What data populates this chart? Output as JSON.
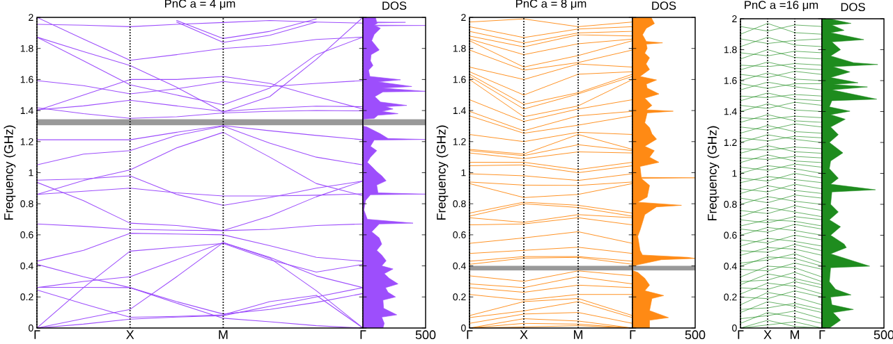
{
  "chart_data": [
    {
      "type": "line",
      "title": "PnC a = 4 μm",
      "ylabel": "Frequency (GHz)",
      "color": "#9d4efc",
      "categories": [
        "Γ",
        null,
        "X",
        null,
        "M",
        null,
        null,
        "Γ"
      ],
      "grid": "x",
      "ylim": [
        0,
        2
      ],
      "yticks": [
        0,
        0.2,
        0.4,
        0.6,
        0.8,
        1,
        1.2,
        1.4,
        1.6,
        1.8,
        2
      ],
      "bands": [
        {
          "axis": "y",
          "from": 1.305,
          "to": 1.345,
          "color": "#999999"
        }
      ],
      "series": [
        {
          "values": [
            0,
            0.025,
            0.057,
            0.07,
            0.08,
            0.14,
            0.2,
            0.26
          ]
        },
        {
          "values": [
            0,
            0.06,
            0.12,
            0.33,
            0.55,
            0.45,
            0.24,
            0
          ]
        },
        {
          "values": [
            0,
            0.26,
            0.495,
            0.52,
            0.545,
            0.44,
            0.36,
            0.41
          ]
        },
        {
          "values": [
            0.245,
            0.155,
            0.069,
            0.075,
            0.085,
            0.17,
            0.21,
            0
          ]
        },
        {
          "values": [
            0.262,
            0.262,
            0.26,
            0.16,
            0.063,
            0.04,
            0.015,
            0
          ]
        },
        {
          "values": [
            0.41,
            0.33,
            0.26,
            0.17,
            0.09,
            0.12,
            0.165,
            0.222
          ]
        },
        {
          "values": [
            0.26,
            0.3,
            0.33,
            0.44,
            0.55,
            0.455,
            0.335,
            0.26
          ]
        },
        {
          "values": [
            0.43,
            0.5,
            0.61,
            0.605,
            0.6,
            0.53,
            0.455,
            0.43
          ]
        },
        {
          "values": [
            0.67,
            0.655,
            0.635,
            0.63,
            0.627,
            0.635,
            0.66,
            0.67
          ]
        },
        {
          "values": [
            0.938,
            0.82,
            0.675,
            0.66,
            0.627,
            0.72,
            0.845,
            0.946
          ]
        },
        {
          "values": [
            0.86,
            0.88,
            0.9,
            0.87,
            0.85,
            0.85,
            0.855,
            0.864
          ]
        },
        {
          "values": [
            0.952,
            0.96,
            0.98,
            0.86,
            0.79,
            0.84,
            0.9,
            0.946
          ]
        },
        {
          "values": [
            0.86,
            0.95,
            1.018,
            1.16,
            1.26,
            1.1,
            0.93,
            0.852
          ]
        },
        {
          "values": [
            1.05,
            1.12,
            1.142,
            1.24,
            1.3,
            1.19,
            1.1,
            1.05
          ]
        },
        {
          "values": [
            1.212,
            1.212,
            1.212,
            1.26,
            1.303,
            1.27,
            1.24,
            1.212
          ]
        },
        {
          "values": [
            1.418,
            1.38,
            1.35,
            1.36,
            1.385,
            1.395,
            1.4,
            1.398
          ]
        },
        {
          "values": [
            1.405,
            1.43,
            1.466,
            1.43,
            1.395,
            1.415,
            1.428,
            1.425
          ]
        },
        {
          "values": [
            1.4,
            1.5,
            1.6,
            1.6,
            1.62,
            1.575,
            1.49,
            1.41
          ]
        },
        {
          "values": [
            1.593,
            1.56,
            1.508,
            1.54,
            1.587,
            1.555,
            1.575,
            1.593
          ]
        },
        {
          "values": [
            1.873,
            1.72,
            1.566,
            1.5,
            1.437,
            1.545,
            1.76,
            1.873
          ]
        },
        {
          "values": [
            1.873,
            1.78,
            1.69,
            1.55,
            1.39,
            1.49,
            1.73,
            2
          ]
        },
        {
          "values": [
            2,
            1.86,
            1.724,
            1.76,
            1.8,
            1.82,
            1.858,
            1.873
          ]
        },
        {
          "values": [
            1.955,
            1.95,
            1.94,
            1.955,
            1.967,
            1.98,
            1.97,
            1.963
          ]
        },
        {
          "values": [
            null,
            null,
            null,
            1.98,
            1.864,
            1.91,
            1.99,
            null
          ]
        },
        {
          "values": [
            null,
            null,
            null,
            1.97,
            1.839,
            1.885,
            1.97,
            null
          ]
        }
      ]
    },
    {
      "type": "area",
      "orientation": "horizontal",
      "title": "DOS",
      "color": "#9d4efc",
      "xlim": [
        0,
        500
      ],
      "xticks": [
        500
      ],
      "ylim": [
        0,
        2
      ],
      "yticks": [
        0,
        0.2,
        0.4,
        0.6,
        0.8,
        1,
        1.2,
        1.4,
        1.6,
        1.8,
        2
      ],
      "tick_labels": "x",
      "bands": [
        {
          "axis": "y",
          "from": 1.305,
          "to": 1.345,
          "color": "#999999"
        }
      ],
      "x": [
        2.0,
        1.97,
        1.968,
        1.965,
        1.95,
        1.948,
        1.945,
        1.93,
        1.89,
        1.85,
        1.79,
        1.76,
        1.72,
        1.69,
        1.66,
        1.62,
        1.598,
        1.585,
        1.555,
        1.545,
        1.524,
        1.52,
        1.49,
        1.455,
        1.433,
        1.425,
        1.41,
        1.395,
        1.38,
        1.37,
        1.35,
        1.345,
        1.3,
        1.295,
        1.25,
        1.22,
        1.214,
        1.21,
        1.17,
        1.142,
        1.1,
        1.067,
        1.04,
        1.007,
        0.98,
        0.948,
        0.92,
        0.87,
        0.862,
        0.858,
        0.82,
        0.76,
        0.7,
        0.675,
        0.67,
        0.62,
        0.58,
        0.54,
        0.5,
        0.47,
        0.433,
        0.4,
        0.38,
        0.35,
        0.32,
        0.284,
        0.26,
        0.23,
        0.2,
        0.18,
        0.127,
        0.085,
        0.07,
        0.03,
        0
      ],
      "values": [
        100,
        110,
        340,
        120,
        90,
        500,
        100,
        140,
        90,
        70,
        130,
        65,
        60,
        80,
        45,
        55,
        300,
        120,
        390,
        150,
        500,
        160,
        95,
        140,
        350,
        180,
        240,
        150,
        280,
        120,
        90,
        0,
        0,
        30,
        140,
        200,
        500,
        90,
        60,
        110,
        60,
        35,
        70,
        110,
        150,
        185,
        110,
        120,
        500,
        60,
        20,
        8,
        35,
        400,
        130,
        70,
        130,
        150,
        110,
        150,
        185,
        150,
        240,
        170,
        210,
        280,
        180,
        200,
        260,
        160,
        165,
        270,
        150,
        170,
        160
      ]
    },
    {
      "type": "line",
      "title": "PnC a = 8 μm",
      "ylabel": "Frequency (GHz)",
      "color": "#ff8a14",
      "categories": [
        "Γ",
        "X",
        "M",
        "Γ"
      ],
      "grid": "x",
      "ylim": [
        0,
        2
      ],
      "yticks": [
        0,
        0.2,
        0.4,
        0.6,
        0.8,
        1,
        1.2,
        1.4,
        1.6,
        1.8,
        2
      ],
      "bands": [
        {
          "axis": "y",
          "from": 0.37,
          "to": 0.4,
          "color": "#999999"
        }
      ],
      "series": [
        {
          "values": [
            0,
            0.007,
            0.015,
            0
          ]
        },
        {
          "values": [
            0,
            0.03,
            0.025,
            0
          ]
        },
        {
          "values": [
            0,
            0.06,
            0.045,
            0
          ]
        },
        {
          "values": [
            0.03,
            0.09,
            0.1,
            0.03
          ]
        },
        {
          "values": [
            0.067,
            0.11,
            0.17,
            0.067
          ]
        },
        {
          "values": [
            0.08,
            0.17,
            0.19,
            0.08
          ]
        },
        {
          "values": [
            0.216,
            0.18,
            0.216,
            0.216
          ]
        },
        {
          "values": [
            0.26,
            0.23,
            0.276,
            0.26
          ]
        },
        {
          "values": [
            0.284,
            0.26,
            0.33,
            0.284
          ]
        },
        {
          "values": [
            0.336,
            0.3,
            0.368,
            0.336
          ]
        },
        {
          "values": [
            0.41,
            0.45,
            0.455,
            0.41
          ]
        },
        {
          "values": [
            0.43,
            0.46,
            0.46,
            0.43
          ]
        },
        {
          "values": [
            0.48,
            0.5,
            0.52,
            0.48
          ]
        },
        {
          "values": [
            0.545,
            0.58,
            0.62,
            0.545
          ]
        },
        {
          "values": [
            0.664,
            0.67,
            0.71,
            0.664
          ]
        },
        {
          "values": [
            0.71,
            0.68,
            0.73,
            0.71
          ]
        },
        {
          "values": [
            0.72,
            0.8,
            0.776,
            0.72
          ]
        },
        {
          "values": [
            0.74,
            0.81,
            0.79,
            0.74
          ]
        },
        {
          "values": [
            0.93,
            0.84,
            0.86,
            0.93
          ]
        },
        {
          "values": [
            0.94,
            0.92,
            0.918,
            0.94
          ]
        },
        {
          "values": [
            0.993,
            0.98,
            0.95,
            0.993
          ]
        },
        {
          "values": [
            1.045,
            1.05,
            1.0,
            1.045
          ]
        },
        {
          "values": [
            1.067,
            1.067,
            1.02,
            1.067
          ]
        },
        {
          "values": [
            1.127,
            1.09,
            1.134,
            1.127
          ]
        },
        {
          "values": [
            1.142,
            1.11,
            1.18,
            1.142
          ]
        },
        {
          "values": [
            1.15,
            1.12,
            1.246,
            1.15
          ]
        },
        {
          "values": [
            1.246,
            1.2,
            1.26,
            1.246
          ]
        },
        {
          "values": [
            1.366,
            1.254,
            1.306,
            1.366
          ]
        },
        {
          "values": [
            1.395,
            1.27,
            1.366,
            1.395
          ]
        },
        {
          "values": [
            1.47,
            1.33,
            1.41,
            1.47
          ]
        },
        {
          "values": [
            1.6,
            1.36,
            1.43,
            1.6
          ]
        },
        {
          "values": [
            1.62,
            1.41,
            1.507,
            1.62
          ]
        },
        {
          "values": [
            1.634,
            1.44,
            1.515,
            1.634
          ]
        },
        {
          "values": [
            1.65,
            1.5,
            1.634,
            1.65
          ]
        },
        {
          "values": [
            1.68,
            1.6,
            1.7,
            1.68
          ]
        },
        {
          "values": [
            1.79,
            1.66,
            1.709,
            1.79
          ]
        },
        {
          "values": [
            1.85,
            1.68,
            1.754,
            1.85
          ]
        },
        {
          "values": [
            1.86,
            1.76,
            1.83,
            1.86
          ]
        },
        {
          "values": [
            1.88,
            1.81,
            1.888,
            1.88
          ]
        },
        {
          "values": [
            1.91,
            1.835,
            1.9,
            1.91
          ]
        },
        {
          "values": [
            1.94,
            1.87,
            1.925,
            1.94
          ]
        },
        {
          "values": [
            1.97,
            1.99,
            1.94,
            1.97
          ]
        }
      ]
    },
    {
      "type": "area",
      "orientation": "horizontal",
      "title": "DOS",
      "color": "#ff8a14",
      "xlim": [
        0,
        500
      ],
      "xticks": [
        500
      ],
      "ylim": [
        0,
        2
      ],
      "yticks": [
        0,
        0.2,
        0.4,
        0.6,
        0.8,
        1,
        1.2,
        1.4,
        1.6,
        1.8,
        2
      ],
      "tick_labels": "x",
      "bands": [
        {
          "axis": "y",
          "from": 0.37,
          "to": 0.4,
          "color": "#999999"
        }
      ],
      "x": [
        2.0,
        1.99,
        1.96,
        1.93,
        1.888,
        1.845,
        1.836,
        1.828,
        1.8,
        1.77,
        1.74,
        1.7,
        1.664,
        1.62,
        1.597,
        1.57,
        1.545,
        1.507,
        1.48,
        1.433,
        1.405,
        1.396,
        1.385,
        1.321,
        1.29,
        1.25,
        1.216,
        1.17,
        1.142,
        1.1,
        1.067,
        1.04,
        0.97,
        0.967,
        0.963,
        0.918,
        0.843,
        0.81,
        0.79,
        0.78,
        0.73,
        0.679,
        0.63,
        0.59,
        0.545,
        0.5,
        0.47,
        0.455,
        0.448,
        0.44,
        0.41,
        0.4,
        0.37,
        0.358,
        0.32,
        0.276,
        0.24,
        0.209,
        0.19,
        0.112,
        0.067,
        0.05,
        0
      ],
      "values": [
        150,
        155,
        175,
        110,
        80,
        110,
        240,
        110,
        117,
        98,
        136,
        108,
        136,
        60,
        192,
        110,
        117,
        211,
        98,
        155,
        110,
        325,
        117,
        98,
        136,
        155,
        192,
        98,
        174,
        136,
        211,
        60,
        70,
        500,
        70,
        136,
        117,
        42,
        391,
        192,
        98,
        79,
        60,
        42,
        51,
        60,
        79,
        438,
        500,
        230,
        60,
        0,
        0,
        42,
        98,
        136,
        98,
        249,
        155,
        136,
        287,
        136,
        136
      ]
    },
    {
      "type": "line",
      "title": "PnC a =16 μm",
      "ylabel": "Frequency (GHz)",
      "color": "#1e8c1e",
      "categories": [
        "Γ",
        "X",
        "M",
        "Γ"
      ],
      "grid": "x",
      "ylim": [
        0,
        2
      ],
      "yticks": [
        0,
        0.2,
        0.4,
        0.6,
        0.8,
        1,
        1.2,
        1.4,
        1.6,
        1.8,
        2
      ],
      "series": [
        {
          "values": [
            0,
            0.05,
            0.01,
            0
          ]
        },
        {
          "values": [
            0,
            0.02,
            0.04,
            0
          ]
        },
        {
          "values": [
            0.03,
            0.1,
            0.07,
            0.03
          ]
        },
        {
          "values": [
            0.06,
            0.08,
            0.11,
            0.06
          ]
        },
        {
          "values": [
            0.1,
            0.17,
            0.14,
            0.1
          ]
        },
        {
          "values": [
            0.12,
            0.13,
            0.16,
            0.12
          ]
        },
        {
          "values": [
            0.15,
            0.23,
            0.2,
            0.15
          ]
        },
        {
          "values": [
            0.2,
            0.19,
            0.24,
            0.2
          ]
        },
        {
          "values": [
            0.22,
            0.29,
            0.27,
            0.22
          ]
        },
        {
          "values": [
            0.26,
            0.25,
            0.3,
            0.26
          ]
        },
        {
          "values": [
            0.28,
            0.35,
            0.32,
            0.28
          ]
        },
        {
          "values": [
            0.3,
            0.31,
            0.36,
            0.3
          ]
        },
        {
          "values": [
            0.33,
            0.4,
            0.39,
            0.33
          ]
        },
        {
          "values": [
            0.38,
            0.37,
            0.42,
            0.38
          ]
        },
        {
          "values": [
            0.4,
            0.46,
            0.45,
            0.4
          ]
        },
        {
          "values": [
            0.42,
            0.44,
            0.48,
            0.42
          ]
        },
        {
          "values": [
            0.47,
            0.52,
            0.51,
            0.47
          ]
        },
        {
          "values": [
            0.5,
            0.49,
            0.54,
            0.5
          ]
        },
        {
          "values": [
            0.53,
            0.58,
            0.56,
            0.53
          ]
        },
        {
          "values": [
            0.57,
            0.55,
            0.6,
            0.57
          ]
        },
        {
          "values": [
            0.6,
            0.65,
            0.63,
            0.6
          ]
        },
        {
          "values": [
            0.64,
            0.62,
            0.67,
            0.64
          ]
        },
        {
          "values": [
            0.66,
            0.7,
            0.69,
            0.66
          ]
        },
        {
          "values": [
            0.7,
            0.68,
            0.72,
            0.7
          ]
        },
        {
          "values": [
            0.72,
            0.78,
            0.75,
            0.72
          ]
        },
        {
          "values": [
            0.76,
            0.74,
            0.79,
            0.76
          ]
        },
        {
          "values": [
            0.8,
            0.85,
            0.82,
            0.8
          ]
        },
        {
          "values": [
            0.84,
            0.81,
            0.86,
            0.84
          ]
        },
        {
          "values": [
            0.87,
            0.92,
            0.89,
            0.87
          ]
        },
        {
          "values": [
            0.9,
            0.88,
            0.93,
            0.9
          ]
        },
        {
          "values": [
            0.94,
            0.98,
            0.96,
            0.94
          ]
        },
        {
          "values": [
            0.97,
            0.95,
            1.0,
            0.97
          ]
        },
        {
          "values": [
            1.0,
            1.05,
            1.03,
            1.0
          ]
        },
        {
          "values": [
            1.04,
            1.02,
            1.06,
            1.04
          ]
        },
        {
          "values": [
            1.07,
            1.12,
            1.08,
            1.07
          ]
        },
        {
          "values": [
            1.1,
            1.09,
            1.11,
            1.1
          ]
        },
        {
          "values": [
            1.13,
            1.18,
            1.14,
            1.13
          ]
        },
        {
          "values": [
            1.16,
            1.15,
            1.17,
            1.16
          ]
        },
        {
          "values": [
            1.2,
            1.25,
            1.22,
            1.2
          ]
        },
        {
          "values": [
            1.23,
            1.21,
            1.24,
            1.23
          ]
        },
        {
          "values": [
            1.26,
            1.31,
            1.27,
            1.26
          ]
        },
        {
          "values": [
            1.3,
            1.28,
            1.32,
            1.3
          ]
        },
        {
          "values": [
            1.33,
            1.38,
            1.34,
            1.33
          ]
        },
        {
          "values": [
            1.36,
            1.35,
            1.37,
            1.36
          ]
        },
        {
          "values": [
            1.4,
            1.45,
            1.41,
            1.4
          ]
        },
        {
          "values": [
            1.44,
            1.42,
            1.46,
            1.44
          ]
        },
        {
          "values": [
            1.47,
            1.52,
            1.48,
            1.47
          ]
        },
        {
          "values": [
            1.5,
            1.49,
            1.51,
            1.5
          ]
        },
        {
          "values": [
            1.54,
            1.59,
            1.56,
            1.54
          ]
        },
        {
          "values": [
            1.58,
            1.55,
            1.58,
            1.58
          ]
        },
        {
          "values": [
            1.6,
            1.65,
            1.61,
            1.6
          ]
        },
        {
          "values": [
            1.64,
            1.62,
            1.66,
            1.64
          ]
        },
        {
          "values": [
            1.67,
            1.72,
            1.68,
            1.67
          ]
        },
        {
          "values": [
            1.7,
            1.69,
            1.71,
            1.7
          ]
        },
        {
          "values": [
            1.74,
            1.8,
            1.75,
            1.74
          ]
        },
        {
          "values": [
            1.78,
            1.76,
            1.79,
            1.78
          ]
        },
        {
          "values": [
            1.82,
            1.88,
            1.83,
            1.82
          ]
        },
        {
          "values": [
            1.87,
            1.84,
            1.86,
            1.87
          ]
        },
        {
          "values": [
            1.9,
            1.97,
            1.91,
            1.9
          ]
        },
        {
          "values": [
            1.95,
            1.92,
            1.96,
            1.95
          ]
        }
      ]
    },
    {
      "type": "area",
      "orientation": "horizontal",
      "title": "DOS",
      "color": "#1e8c1e",
      "xlim": [
        0,
        500
      ],
      "xticks": [
        500
      ],
      "ylim": [
        0,
        2
      ],
      "yticks": [
        0,
        0.2,
        0.4,
        0.6,
        0.8,
        1,
        1.2,
        1.4,
        1.6,
        1.8,
        2
      ],
      "tick_labels": "x",
      "x": [
        2.0,
        1.97,
        1.96,
        1.925,
        1.91,
        1.865,
        1.85,
        1.8,
        1.76,
        1.716,
        1.704,
        1.69,
        1.656,
        1.62,
        1.586,
        1.575,
        1.559,
        1.54,
        1.48,
        1.47,
        1.43,
        1.402,
        1.38,
        1.35,
        1.3,
        1.25,
        1.2,
        1.133,
        1.08,
        1.03,
        0.969,
        0.93,
        0.894,
        0.88,
        0.8,
        0.75,
        0.7,
        0.655,
        0.6,
        0.543,
        0.52,
        0.48,
        0.4,
        0.39,
        0.3,
        0.25,
        0.214,
        0.2,
        0.15,
        0.12,
        0.1,
        0.05,
        0
      ],
      "values": [
        60,
        235,
        80,
        179,
        70,
        338,
        80,
        150,
        70,
        254,
        451,
        90,
        226,
        70,
        291,
        90,
        367,
        80,
        442,
        80,
        60,
        226,
        70,
        188,
        70,
        132,
        60,
        169,
        70,
        60,
        132,
        70,
        432,
        80,
        70,
        132,
        60,
        150,
        70,
        179,
        197,
        70,
        385,
        70,
        60,
        110,
        235,
        70,
        80,
        254,
        90,
        150,
        60
      ]
    }
  ]
}
